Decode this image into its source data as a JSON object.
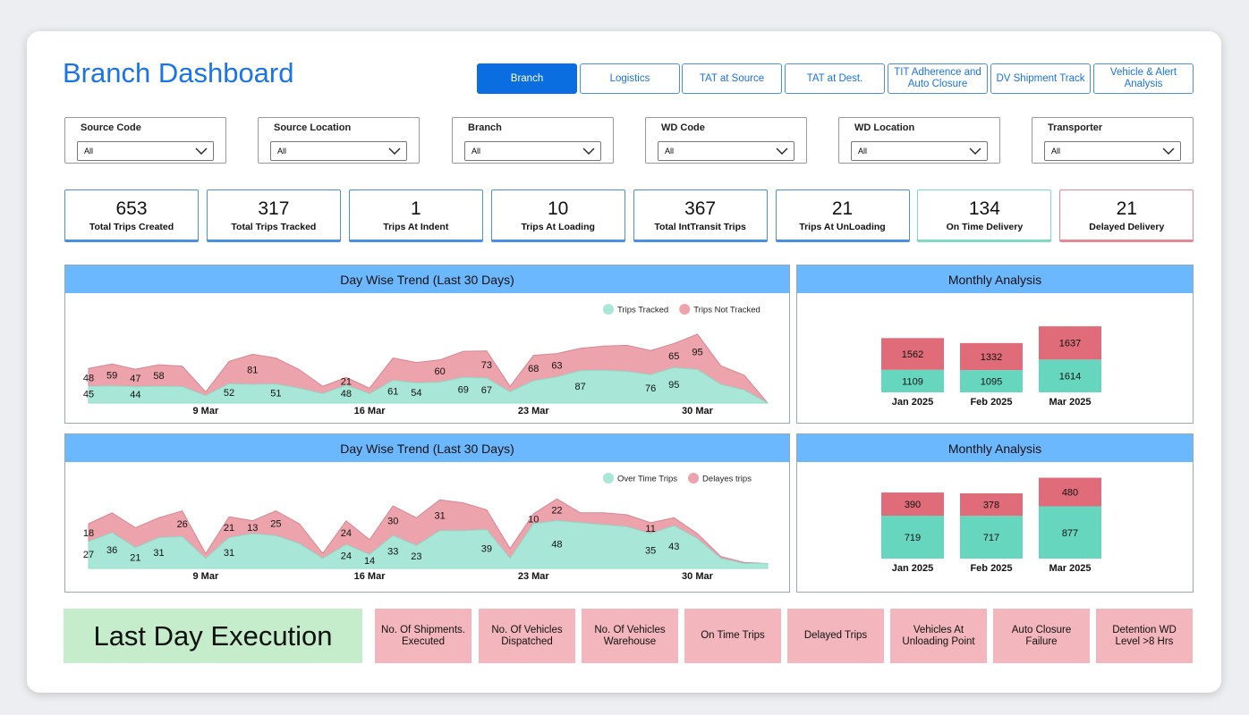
{
  "header": {
    "title": "Branch Dashboard"
  },
  "tabs": [
    {
      "label": "Branch",
      "active": true
    },
    {
      "label": "Logistics",
      "active": false
    },
    {
      "label": "TAT at Source",
      "active": false
    },
    {
      "label": "TAT at Dest.",
      "active": false
    },
    {
      "label": "TIT Adherence and Auto Closure",
      "active": false
    },
    {
      "label": "DV Shipment Track",
      "active": false
    },
    {
      "label": "Vehicle & Alert Analysis",
      "active": false
    }
  ],
  "filters": [
    {
      "label": "Source Code",
      "value": "All"
    },
    {
      "label": "Source Location",
      "value": "All"
    },
    {
      "label": "Branch",
      "value": "All"
    },
    {
      "label": "WD Code",
      "value": "All"
    },
    {
      "label": "WD Location",
      "value": "All"
    },
    {
      "label": "Transporter",
      "value": "All"
    }
  ],
  "kpis": [
    {
      "value": 653,
      "label": "Total Trips Created",
      "color": "#4a90e2"
    },
    {
      "value": 317,
      "label": "Total Trips Tracked",
      "color": "#4a90e2"
    },
    {
      "value": 1,
      "label": "Trips At Indent",
      "color": "#4a90e2"
    },
    {
      "value": 10,
      "label": "Trips At Loading",
      "color": "#4a90e2"
    },
    {
      "value": 367,
      "label": "Total IntTransit Trips",
      "color": "#4a90e2"
    },
    {
      "value": 21,
      "label": "Trips At UnLoading",
      "color": "#4a90e2"
    },
    {
      "value": 134,
      "label": "On Time Delivery",
      "color": "#7fd9c6"
    },
    {
      "value": 21,
      "label": "Delayed Delivery",
      "color": "#e58a95"
    }
  ],
  "chart_data": [
    {
      "type": "area",
      "title": "Day Wise Trend (Last 30 Days)",
      "x": [
        4,
        5,
        6,
        7,
        8,
        9,
        10,
        11,
        12,
        13,
        14,
        15,
        16,
        17,
        18,
        19,
        20,
        21,
        22,
        23,
        24,
        25,
        26,
        27,
        28,
        29,
        30,
        31,
        32,
        33
      ],
      "xlim": [
        4,
        33
      ],
      "xticks": [
        {
          "value": 9,
          "label": "9 Mar"
        },
        {
          "value": 16,
          "label": "16 Mar"
        },
        {
          "value": 23,
          "label": "23 Mar"
        },
        {
          "value": 30,
          "label": "30 Mar"
        }
      ],
      "ylim": [
        0,
        240
      ],
      "series": [
        {
          "name": "Trips Tracked",
          "color": "#a8e6d8",
          "values": [
            45,
            46,
            44,
            45,
            44,
            20,
            52,
            50,
            51,
            40,
            25,
            48,
            25,
            61,
            54,
            56,
            69,
            67,
            30,
            60,
            70,
            87,
            88,
            85,
            76,
            95,
            90,
            50,
            35,
            0
          ],
          "value_labels": [
            "45",
            null,
            "44",
            null,
            null,
            null,
            "52",
            null,
            "51",
            null,
            null,
            "48",
            null,
            "61",
            "54",
            null,
            "69",
            "67",
            null,
            null,
            null,
            "87",
            null,
            null,
            "76",
            "95",
            null,
            null,
            null,
            null
          ]
        },
        {
          "name": "Trips Not Tracked",
          "color": "#eda3ab",
          "values": [
            48,
            59,
            47,
            58,
            55,
            10,
            60,
            81,
            70,
            50,
            20,
            21,
            15,
            60,
            55,
            60,
            70,
            73,
            15,
            68,
            63,
            60,
            65,
            70,
            65,
            65,
            95,
            50,
            40,
            0
          ],
          "value_labels": [
            "48",
            "59",
            "47",
            "58",
            null,
            null,
            null,
            "81",
            null,
            null,
            null,
            "21",
            null,
            null,
            null,
            "60",
            null,
            "73",
            null,
            "68",
            "63",
            null,
            null,
            null,
            null,
            "65",
            "95",
            null,
            null,
            null
          ]
        }
      ]
    },
    {
      "type": "bar",
      "stacked": true,
      "title": "Monthly Analysis",
      "categories": [
        "Jan 2025",
        "Feb 2025",
        "Mar 2025"
      ],
      "ylim": [
        0,
        4400
      ],
      "series": [
        {
          "name": "Trips Tracked",
          "color": "#66d6bf",
          "values": [
            1109,
            1095,
            1614
          ]
        },
        {
          "name": "Trips Not Tracked",
          "color": "#e06b79",
          "values": [
            1562,
            1332,
            1637
          ]
        }
      ]
    },
    {
      "type": "area",
      "title": "Day Wise Trend (Last 30 Days)",
      "x": [
        4,
        5,
        6,
        7,
        8,
        9,
        10,
        11,
        12,
        13,
        14,
        15,
        16,
        17,
        18,
        19,
        20,
        21,
        22,
        23,
        24,
        25,
        26,
        27,
        28,
        29,
        30,
        31,
        32,
        33
      ],
      "xlim": [
        4,
        33
      ],
      "xticks": [
        {
          "value": 9,
          "label": "9 Mar"
        },
        {
          "value": 16,
          "label": "16 Mar"
        },
        {
          "value": 23,
          "label": "23 Mar"
        },
        {
          "value": 30,
          "label": "30 Mar"
        }
      ],
      "ylim": [
        0,
        90
      ],
      "series": [
        {
          "name": "Over Time Trips",
          "color": "#a8e6d8",
          "values": [
            27,
            36,
            21,
            31,
            32,
            10,
            31,
            35,
            33,
            25,
            10,
            24,
            14,
            33,
            23,
            38,
            38,
            39,
            10,
            45,
            48,
            46,
            44,
            42,
            35,
            43,
            30,
            10,
            5,
            5
          ],
          "value_labels": [
            "27",
            "36",
            "21",
            "31",
            null,
            null,
            "31",
            null,
            null,
            null,
            null,
            "24",
            "14",
            "33",
            "23",
            null,
            null,
            "39",
            null,
            null,
            "48",
            null,
            null,
            null,
            "35",
            "43",
            null,
            null,
            null,
            null
          ]
        },
        {
          "name": "Delayes trips",
          "color": "#eda3ab",
          "values": [
            18,
            20,
            20,
            20,
            26,
            5,
            21,
            13,
            25,
            20,
            5,
            24,
            15,
            30,
            28,
            31,
            28,
            20,
            10,
            10,
            22,
            10,
            12,
            12,
            11,
            8,
            5,
            2,
            1,
            0
          ],
          "value_labels": [
            "18",
            null,
            null,
            null,
            "26",
            null,
            "21",
            "13",
            "25",
            null,
            null,
            "24",
            null,
            "30",
            null,
            "31",
            null,
            null,
            null,
            "10",
            "22",
            null,
            null,
            null,
            "11",
            null,
            null,
            null,
            null,
            null
          ]
        }
      ]
    },
    {
      "type": "bar",
      "stacked": true,
      "title": "Monthly Analysis",
      "categories": [
        "Jan 2025",
        "Feb 2025",
        "Mar 2025"
      ],
      "ylim": [
        0,
        1500
      ],
      "series": [
        {
          "name": "Over Time Trips",
          "color": "#66d6bf",
          "values": [
            719,
            717,
            877
          ]
        },
        {
          "name": "Delayes trips",
          "color": "#e06b79",
          "values": [
            390,
            378,
            480
          ]
        }
      ]
    }
  ],
  "execution": {
    "title": "Last Day Execution",
    "items": [
      "No. Of Shipments. Executed",
      "No. Of Vehicles Dispatched",
      "No. Of Vehicles Warehouse",
      "On Time Trips",
      "Delayed Trips",
      "Vehicles At Unloading Point",
      "Auto Closure Failure",
      "Detention WD Level >8 Hrs"
    ]
  }
}
